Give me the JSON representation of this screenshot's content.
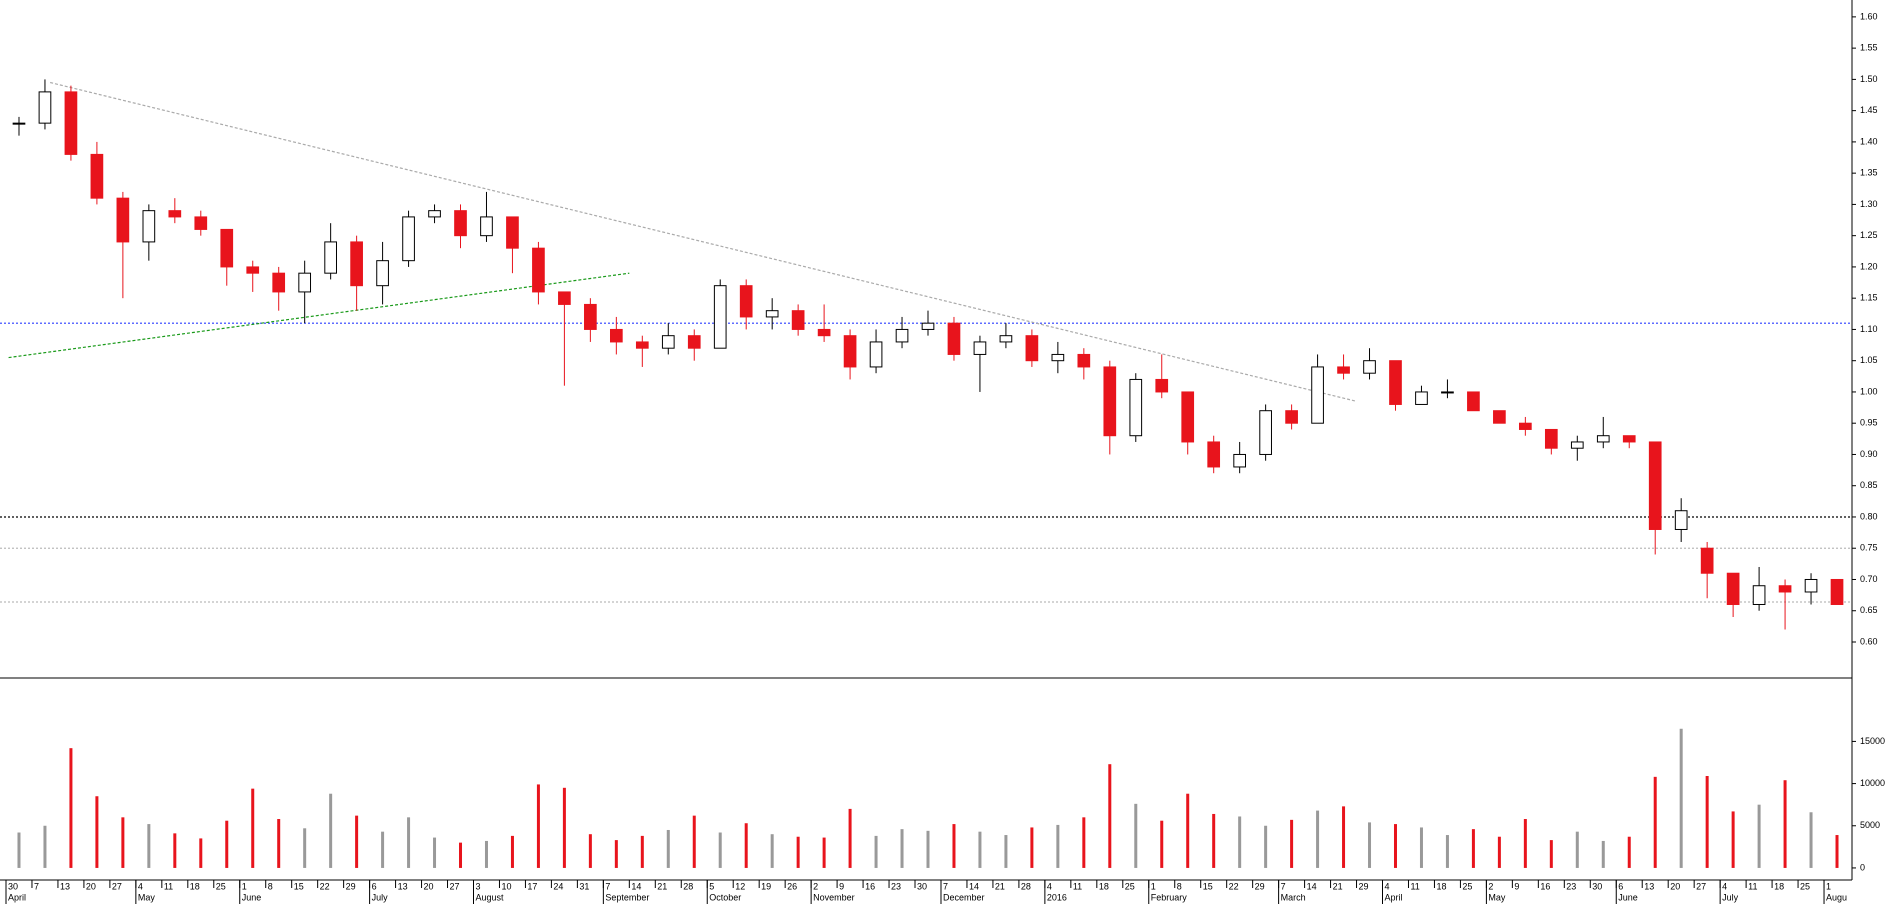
{
  "chart_data": {
    "type": "candlestick",
    "categories": [
      "30",
      "7",
      "13",
      "20",
      "27",
      "4",
      "11",
      "18",
      "25",
      "1",
      "8",
      "15",
      "22",
      "29",
      "6",
      "13",
      "20",
      "27",
      "3",
      "10",
      "17",
      "24",
      "31",
      "7",
      "14",
      "21",
      "28",
      "5",
      "12",
      "19",
      "26",
      "2",
      "9",
      "16",
      "23",
      "30",
      "7",
      "14",
      "21",
      "28",
      "4",
      "11",
      "18",
      "25",
      "1",
      "8",
      "15",
      "22",
      "29",
      "7",
      "14",
      "21",
      "29",
      "4",
      "11",
      "18",
      "25",
      "2",
      "9",
      "16",
      "23",
      "30",
      "6",
      "13",
      "20",
      "27",
      "4",
      "11",
      "18",
      "25",
      "1"
    ],
    "months": [
      "April",
      null,
      null,
      null,
      null,
      "May",
      null,
      null,
      null,
      "June",
      null,
      null,
      null,
      null,
      "July",
      null,
      null,
      null,
      "August",
      null,
      null,
      null,
      null,
      "September",
      null,
      null,
      null,
      "October",
      null,
      null,
      null,
      "November",
      null,
      null,
      null,
      null,
      "December",
      null,
      null,
      null,
      "2016",
      null,
      null,
      null,
      "February",
      null,
      null,
      null,
      null,
      "March",
      null,
      null,
      null,
      "April",
      null,
      null,
      null,
      "May",
      null,
      null,
      null,
      null,
      "June",
      null,
      null,
      null,
      "July",
      null,
      null,
      null,
      "Augu"
    ],
    "open": [
      1.43,
      1.43,
      1.48,
      1.38,
      1.31,
      1.24,
      1.29,
      1.28,
      1.26,
      1.2,
      1.19,
      1.16,
      1.19,
      1.24,
      1.17,
      1.21,
      1.28,
      1.29,
      1.25,
      1.28,
      1.23,
      1.16,
      1.14,
      1.1,
      1.08,
      1.07,
      1.09,
      1.07,
      1.17,
      1.12,
      1.13,
      1.1,
      1.09,
      1.04,
      1.08,
      1.1,
      1.11,
      1.06,
      1.08,
      1.09,
      1.05,
      1.06,
      1.04,
      0.93,
      1.02,
      1.0,
      0.92,
      0.88,
      0.9,
      0.97,
      0.95,
      1.04,
      1.03,
      1.05,
      0.98,
      1.0,
      1.0,
      0.97,
      0.95,
      0.94,
      0.91,
      0.92,
      0.93,
      0.92,
      0.78,
      0.75,
      0.71,
      0.66,
      0.69,
      0.68,
      0.7
    ],
    "high": [
      1.44,
      1.5,
      1.49,
      1.4,
      1.32,
      1.3,
      1.31,
      1.29,
      1.26,
      1.21,
      1.2,
      1.21,
      1.27,
      1.25,
      1.24,
      1.29,
      1.3,
      1.3,
      1.32,
      1.28,
      1.24,
      1.16,
      1.15,
      1.12,
      1.09,
      1.11,
      1.1,
      1.18,
      1.18,
      1.15,
      1.14,
      1.14,
      1.1,
      1.1,
      1.12,
      1.13,
      1.12,
      1.09,
      1.11,
      1.1,
      1.08,
      1.07,
      1.05,
      1.03,
      1.06,
      1.0,
      0.93,
      0.92,
      0.98,
      0.98,
      1.06,
      1.06,
      1.07,
      1.05,
      1.01,
      1.02,
      1.0,
      0.97,
      0.96,
      0.94,
      0.93,
      0.96,
      0.93,
      0.92,
      0.83,
      0.76,
      0.71,
      0.72,
      0.7,
      0.71,
      0.7
    ],
    "low": [
      1.41,
      1.42,
      1.37,
      1.3,
      1.15,
      1.21,
      1.27,
      1.25,
      1.17,
      1.16,
      1.13,
      1.11,
      1.18,
      1.13,
      1.14,
      1.2,
      1.27,
      1.23,
      1.24,
      1.19,
      1.14,
      1.01,
      1.08,
      1.06,
      1.04,
      1.06,
      1.05,
      1.07,
      1.1,
      1.1,
      1.09,
      1.08,
      1.02,
      1.03,
      1.07,
      1.09,
      1.05,
      1.0,
      1.07,
      1.04,
      1.03,
      1.02,
      0.9,
      0.92,
      0.99,
      0.9,
      0.87,
      0.87,
      0.89,
      0.94,
      0.95,
      1.02,
      1.02,
      0.97,
      0.98,
      0.99,
      0.97,
      0.95,
      0.93,
      0.9,
      0.89,
      0.91,
      0.91,
      0.74,
      0.76,
      0.67,
      0.64,
      0.65,
      0.62,
      0.66,
      0.66
    ],
    "close": [
      1.43,
      1.48,
      1.38,
      1.31,
      1.24,
      1.29,
      1.28,
      1.26,
      1.2,
      1.19,
      1.16,
      1.19,
      1.24,
      1.17,
      1.21,
      1.28,
      1.29,
      1.25,
      1.28,
      1.23,
      1.16,
      1.14,
      1.1,
      1.08,
      1.07,
      1.09,
      1.07,
      1.17,
      1.12,
      1.13,
      1.1,
      1.09,
      1.04,
      1.08,
      1.1,
      1.11,
      1.06,
      1.08,
      1.09,
      1.05,
      1.06,
      1.04,
      0.93,
      1.02,
      1.0,
      0.92,
      0.88,
      0.9,
      0.97,
      0.95,
      1.04,
      1.03,
      1.05,
      0.98,
      1.0,
      1.0,
      0.97,
      0.95,
      0.94,
      0.91,
      0.92,
      0.93,
      0.92,
      0.78,
      0.81,
      0.71,
      0.66,
      0.69,
      0.68,
      0.7,
      0.66
    ],
    "volume": [
      4200,
      5000,
      14200,
      8500,
      6000,
      5200,
      4100,
      3500,
      5600,
      9400,
      5800,
      4700,
      8800,
      6200,
      4300,
      6000,
      3600,
      3000,
      3200,
      3800,
      9900,
      9500,
      4000,
      3300,
      3800,
      4500,
      6200,
      4200,
      5300,
      4000,
      3700,
      3600,
      7000,
      3800,
      4600,
      4400,
      5200,
      4300,
      3900,
      4800,
      5100,
      6000,
      12300,
      7600,
      5600,
      8800,
      6400,
      6100,
      5000,
      5700,
      6800,
      7300,
      5400,
      5200,
      4800,
      3900,
      4600,
      3700,
      5800,
      3300,
      4300,
      3200,
      3700,
      10800,
      16500,
      10900,
      6700,
      7500,
      10400,
      6600,
      3900
    ],
    "up_color": "#000000",
    "down_color": "#e8141c",
    "up_volume_color": "#999999",
    "ylim": [
      0.544,
      1.627
    ],
    "yticks": [
      {
        "value": 0.6,
        "label": "0.60"
      },
      {
        "value": 0.65,
        "label": "0.65"
      },
      {
        "value": 0.7,
        "label": "0.70"
      },
      {
        "value": 0.75,
        "label": "0.75"
      },
      {
        "value": 0.8,
        "label": "0.80"
      },
      {
        "value": 0.85,
        "label": "0.85"
      },
      {
        "value": 0.9,
        "label": "0.90"
      },
      {
        "value": 0.95,
        "label": "0.95"
      },
      {
        "value": 1.0,
        "label": "1.00"
      },
      {
        "value": 1.05,
        "label": "1.05"
      },
      {
        "value": 1.1,
        "label": "1.10"
      },
      {
        "value": 1.15,
        "label": "1.15"
      },
      {
        "value": 1.2,
        "label": "1.20"
      },
      {
        "value": 1.25,
        "label": "1.25"
      },
      {
        "value": 1.3,
        "label": "1.30"
      },
      {
        "value": 1.35,
        "label": "1.35"
      },
      {
        "value": 1.4,
        "label": "1.40"
      },
      {
        "value": 1.45,
        "label": "1.45"
      },
      {
        "value": 1.5,
        "label": "1.50"
      },
      {
        "value": 1.55,
        "label": "1.55"
      },
      {
        "value": 1.6,
        "label": "1.60"
      }
    ],
    "y2lim": [
      -1430,
      22400
    ],
    "y2ticks": [
      0,
      5000,
      10000,
      15000
    ],
    "hlines": [
      {
        "value": 1.11,
        "color": "#2a3cff"
      },
      {
        "value": 0.8,
        "color": "#000000"
      },
      {
        "value": 0.75,
        "color": "#bbbbbb"
      },
      {
        "value": 0.664,
        "color": "#bbbbbb"
      }
    ],
    "trendlines": [
      {
        "x": [
          1.2,
          51.5
        ],
        "y": [
          1.495,
          0.985
        ],
        "color": "#aaaaaa"
      },
      {
        "x": [
          -0.4,
          23.5
        ],
        "y": [
          1.055,
          1.19
        ],
        "color": "#1a9a1a"
      }
    ]
  }
}
